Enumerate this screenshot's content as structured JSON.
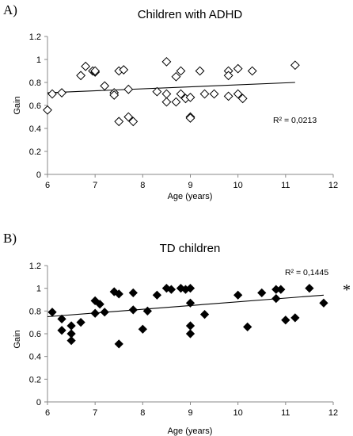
{
  "chart_data": [
    {
      "type": "scatter",
      "panel_label": "A)",
      "title": "Children with ADHD",
      "xlabel": "Age (years)",
      "ylabel": "Gain",
      "xlim": [
        6,
        12
      ],
      "ylim": [
        0,
        1.2
      ],
      "xticks": [
        "6",
        "7",
        "8",
        "9",
        "10",
        "11",
        "12"
      ],
      "yticks": [
        "0",
        "0.2",
        "0.4",
        "0.6",
        "0.8",
        "1",
        "1.2"
      ],
      "marker": "hollow-diamond",
      "annotation": "R² = 0,0213",
      "significance": "",
      "trendline": {
        "x": [
          6,
          11.2
        ],
        "y": [
          0.71,
          0.8
        ]
      },
      "points": [
        [
          6.0,
          0.56
        ],
        [
          6.1,
          0.7
        ],
        [
          6.3,
          0.71
        ],
        [
          6.7,
          0.86
        ],
        [
          6.8,
          0.94
        ],
        [
          6.95,
          0.9
        ],
        [
          7.0,
          0.89
        ],
        [
          7.0,
          0.9
        ],
        [
          7.2,
          0.77
        ],
        [
          7.4,
          0.71
        ],
        [
          7.4,
          0.69
        ],
        [
          7.5,
          0.46
        ],
        [
          7.5,
          0.9
        ],
        [
          7.6,
          0.91
        ],
        [
          7.7,
          0.74
        ],
        [
          7.7,
          0.5
        ],
        [
          7.8,
          0.46
        ],
        [
          8.3,
          0.72
        ],
        [
          8.5,
          0.98
        ],
        [
          8.5,
          0.63
        ],
        [
          8.5,
          0.7
        ],
        [
          8.7,
          0.85
        ],
        [
          8.7,
          0.63
        ],
        [
          8.8,
          0.9
        ],
        [
          8.8,
          0.7
        ],
        [
          8.9,
          0.66
        ],
        [
          9.0,
          0.67
        ],
        [
          9.0,
          0.5
        ],
        [
          9.0,
          0.49
        ],
        [
          9.2,
          0.9
        ],
        [
          9.3,
          0.7
        ],
        [
          9.5,
          0.7
        ],
        [
          9.8,
          0.9
        ],
        [
          9.8,
          0.68
        ],
        [
          9.8,
          0.86
        ],
        [
          10.0,
          0.92
        ],
        [
          10.0,
          0.7
        ],
        [
          10.1,
          0.66
        ],
        [
          10.3,
          0.9
        ],
        [
          11.2,
          0.95
        ]
      ]
    },
    {
      "type": "scatter",
      "panel_label": "B)",
      "title": "TD children",
      "xlabel": "Age (years)",
      "ylabel": "Gain",
      "xlim": [
        6,
        12
      ],
      "ylim": [
        0,
        1.2
      ],
      "xticks": [
        "6",
        "7",
        "8",
        "9",
        "10",
        "11",
        "12"
      ],
      "yticks": [
        "0",
        "0.2",
        "0.4",
        "0.6",
        "0.8",
        "1",
        "1.2"
      ],
      "marker": "filled-diamond",
      "annotation": "R² = 0,1445",
      "significance": "*",
      "trendline": {
        "x": [
          6,
          11.8
        ],
        "y": [
          0.75,
          0.94
        ]
      },
      "points": [
        [
          6.1,
          0.79
        ],
        [
          6.3,
          0.73
        ],
        [
          6.3,
          0.63
        ],
        [
          6.5,
          0.67
        ],
        [
          6.5,
          0.6
        ],
        [
          6.5,
          0.54
        ],
        [
          6.7,
          0.7
        ],
        [
          7.0,
          0.89
        ],
        [
          7.0,
          0.78
        ],
        [
          7.1,
          0.86
        ],
        [
          7.2,
          0.79
        ],
        [
          7.4,
          0.97
        ],
        [
          7.5,
          0.95
        ],
        [
          7.5,
          0.51
        ],
        [
          7.8,
          0.96
        ],
        [
          7.8,
          0.81
        ],
        [
          8.0,
          0.64
        ],
        [
          8.1,
          0.8
        ],
        [
          8.3,
          0.94
        ],
        [
          8.5,
          1.0
        ],
        [
          8.6,
          0.99
        ],
        [
          8.8,
          1.0
        ],
        [
          8.9,
          0.99
        ],
        [
          9.0,
          1.0
        ],
        [
          9.0,
          0.87
        ],
        [
          9.0,
          0.67
        ],
        [
          9.0,
          0.6
        ],
        [
          9.3,
          0.77
        ],
        [
          10.0,
          0.94
        ],
        [
          10.2,
          0.66
        ],
        [
          10.5,
          0.96
        ],
        [
          10.8,
          0.99
        ],
        [
          10.8,
          0.91
        ],
        [
          10.9,
          0.99
        ],
        [
          11.0,
          0.72
        ],
        [
          11.2,
          0.74
        ],
        [
          11.5,
          1.0
        ],
        [
          11.8,
          0.87
        ]
      ]
    }
  ]
}
